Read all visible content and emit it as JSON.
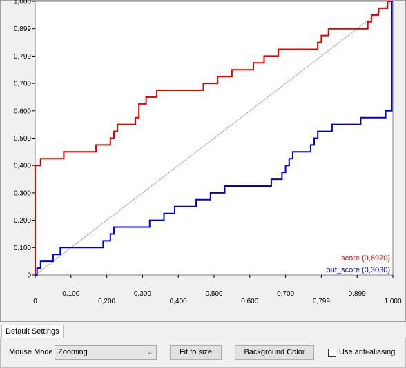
{
  "chart_data": {
    "type": "line",
    "x_ticks": [
      "0",
      "0,100",
      "0,200",
      "0,300",
      "0,400",
      "0,500",
      "0,600",
      "0,700",
      "0,799",
      "0,899",
      "1,000"
    ],
    "y_ticks": [
      "0",
      "0,100",
      "0,200",
      "0,300",
      "0,400",
      "0,500",
      "0,600",
      "0,700",
      "0,799",
      "0,899",
      "1,000"
    ],
    "xlim": [
      0,
      1
    ],
    "ylim": [
      0,
      1
    ],
    "diagonal_color": "#b0b0b0",
    "series": [
      {
        "name": "score (0,6970)",
        "color": "#e00000",
        "points": [
          [
            0,
            0
          ],
          [
            0,
            0.4
          ],
          [
            0.015,
            0.4
          ],
          [
            0.015,
            0.425
          ],
          [
            0.08,
            0.425
          ],
          [
            0.08,
            0.45
          ],
          [
            0.17,
            0.45
          ],
          [
            0.17,
            0.475
          ],
          [
            0.21,
            0.475
          ],
          [
            0.21,
            0.5
          ],
          [
            0.22,
            0.5
          ],
          [
            0.22,
            0.525
          ],
          [
            0.23,
            0.525
          ],
          [
            0.23,
            0.55
          ],
          [
            0.28,
            0.55
          ],
          [
            0.28,
            0.575
          ],
          [
            0.29,
            0.575
          ],
          [
            0.29,
            0.625
          ],
          [
            0.31,
            0.625
          ],
          [
            0.31,
            0.65
          ],
          [
            0.34,
            0.65
          ],
          [
            0.34,
            0.675
          ],
          [
            0.47,
            0.675
          ],
          [
            0.47,
            0.7
          ],
          [
            0.51,
            0.7
          ],
          [
            0.51,
            0.725
          ],
          [
            0.55,
            0.725
          ],
          [
            0.55,
            0.75
          ],
          [
            0.61,
            0.75
          ],
          [
            0.61,
            0.775
          ],
          [
            0.64,
            0.775
          ],
          [
            0.64,
            0.8
          ],
          [
            0.68,
            0.8
          ],
          [
            0.68,
            0.825
          ],
          [
            0.79,
            0.825
          ],
          [
            0.79,
            0.85
          ],
          [
            0.8,
            0.85
          ],
          [
            0.8,
            0.875
          ],
          [
            0.82,
            0.875
          ],
          [
            0.82,
            0.9
          ],
          [
            0.93,
            0.9
          ],
          [
            0.93,
            0.925
          ],
          [
            0.94,
            0.925
          ],
          [
            0.94,
            0.95
          ],
          [
            0.96,
            0.95
          ],
          [
            0.96,
            0.975
          ],
          [
            0.985,
            0.975
          ],
          [
            0.985,
            1.0
          ],
          [
            1.0,
            1.0
          ]
        ]
      },
      {
        "name": "out_score (0,3030)",
        "color": "#0000d0",
        "points": [
          [
            0,
            0
          ],
          [
            0.005,
            0
          ],
          [
            0.005,
            0.025
          ],
          [
            0.015,
            0.025
          ],
          [
            0.015,
            0.05
          ],
          [
            0.05,
            0.05
          ],
          [
            0.05,
            0.075
          ],
          [
            0.07,
            0.075
          ],
          [
            0.07,
            0.1
          ],
          [
            0.19,
            0.1
          ],
          [
            0.19,
            0.125
          ],
          [
            0.21,
            0.125
          ],
          [
            0.21,
            0.15
          ],
          [
            0.22,
            0.15
          ],
          [
            0.22,
            0.175
          ],
          [
            0.32,
            0.175
          ],
          [
            0.32,
            0.2
          ],
          [
            0.36,
            0.2
          ],
          [
            0.36,
            0.225
          ],
          [
            0.39,
            0.225
          ],
          [
            0.39,
            0.25
          ],
          [
            0.45,
            0.25
          ],
          [
            0.45,
            0.275
          ],
          [
            0.49,
            0.275
          ],
          [
            0.49,
            0.3
          ],
          [
            0.53,
            0.3
          ],
          [
            0.53,
            0.325
          ],
          [
            0.66,
            0.325
          ],
          [
            0.66,
            0.35
          ],
          [
            0.69,
            0.35
          ],
          [
            0.69,
            0.375
          ],
          [
            0.7,
            0.375
          ],
          [
            0.7,
            0.4
          ],
          [
            0.71,
            0.4
          ],
          [
            0.71,
            0.425
          ],
          [
            0.72,
            0.425
          ],
          [
            0.72,
            0.45
          ],
          [
            0.77,
            0.45
          ],
          [
            0.77,
            0.475
          ],
          [
            0.78,
            0.475
          ],
          [
            0.78,
            0.5
          ],
          [
            0.79,
            0.5
          ],
          [
            0.79,
            0.525
          ],
          [
            0.83,
            0.525
          ],
          [
            0.83,
            0.55
          ],
          [
            0.91,
            0.55
          ],
          [
            0.91,
            0.575
          ],
          [
            0.98,
            0.575
          ],
          [
            0.98,
            0.6
          ],
          [
            0.997,
            0.6
          ],
          [
            0.997,
            1.0
          ],
          [
            1.0,
            1.0
          ]
        ]
      }
    ]
  },
  "tabs": {
    "default_settings": "Default Settings"
  },
  "toolbar": {
    "mouse_mode_label": "Mouse Mode",
    "mouse_mode_value": "Zooming",
    "fit_to_size": "Fit to size",
    "background_color": "Background Color",
    "anti_aliasing_label": "Use anti-aliasing"
  }
}
